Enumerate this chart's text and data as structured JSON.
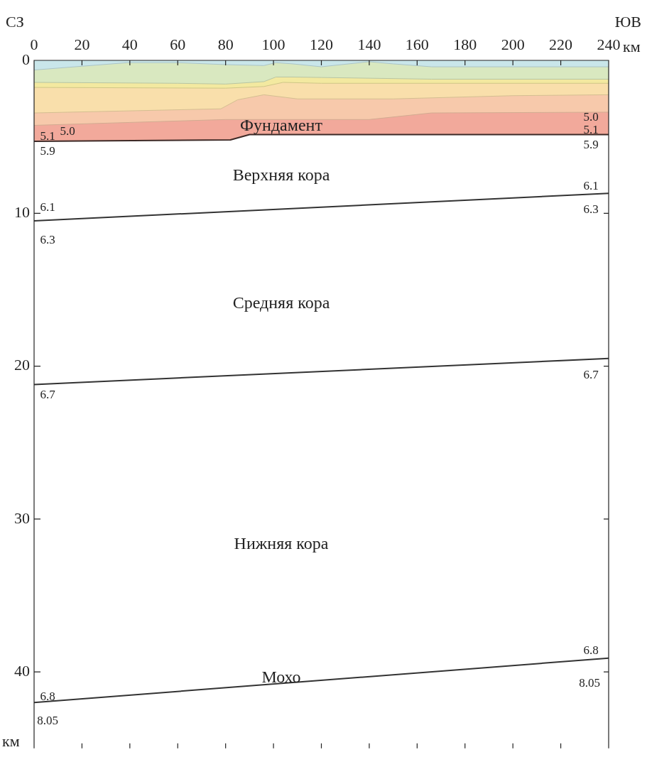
{
  "chart_data": {
    "type": "line",
    "xlabel": "км",
    "ylabel": "км",
    "xlim": [
      0,
      240
    ],
    "xticks": [
      0,
      20,
      40,
      60,
      80,
      100,
      120,
      140,
      160,
      180,
      200,
      220,
      240
    ],
    "ylim": [
      45,
      0
    ],
    "yticks": [
      0,
      10,
      20,
      30,
      40
    ],
    "grid": false,
    "legend": false,
    "marker": "none",
    "line_style": "solid",
    "series": [
      {
        "type": "area",
        "color": "#c9e6ea",
        "x": [
          0,
          39,
          60,
          80,
          96,
          101,
          108,
          120,
          138,
          140,
          150,
          166,
          240
        ],
        "values": [
          0.63,
          0.15,
          0.15,
          0.28,
          0.34,
          0.15,
          0.23,
          0.42,
          0.12,
          0.09,
          0.23,
          0.42,
          0.42
        ]
      },
      {
        "type": "area",
        "color": "#d9e8c0",
        "x": [
          0,
          60,
          80,
          96,
          101,
          108,
          120,
          166,
          240
        ],
        "values": [
          1.44,
          1.5,
          1.55,
          1.39,
          1.09,
          1.09,
          1.12,
          1.23,
          1.23
        ]
      },
      {
        "type": "area",
        "color": "#f3e9a0",
        "x": [
          0,
          80,
          96,
          104,
          120,
          240
        ],
        "values": [
          1.77,
          1.82,
          1.71,
          1.44,
          1.5,
          1.5
        ]
      },
      {
        "type": "area",
        "color": "#f9dfab",
        "x": [
          0,
          78,
          85,
          96,
          110,
          150,
          200,
          240
        ],
        "values": [
          3.44,
          3.17,
          2.58,
          2.25,
          2.52,
          2.52,
          2.31,
          2.25
        ]
      },
      {
        "type": "area",
        "color": "#f7c9ab",
        "x": [
          0,
          40,
          80,
          140,
          166,
          240
        ],
        "values": [
          4.25,
          4.06,
          3.87,
          3.87,
          3.44,
          3.39
        ]
      },
      {
        "type": "area",
        "color": "#f2a99b",
        "x": [
          0,
          82,
          90,
          240
        ],
        "values": [
          5.3,
          5.2,
          4.85,
          4.85
        ]
      },
      {
        "type": "line",
        "color": "#333333",
        "x": [
          0,
          240
        ],
        "values": [
          10.5,
          8.7
        ]
      },
      {
        "type": "line",
        "color": "#333333",
        "x": [
          0,
          240
        ],
        "values": [
          21.2,
          19.5
        ]
      },
      {
        "type": "line",
        "color": "#333333",
        "x": [
          0,
          240
        ],
        "values": [
          42.0,
          39.1
        ]
      }
    ],
    "annotations": [
      "СЗ",
      "ЮВ",
      "Фундамент",
      "5.1",
      "5.0",
      "5.9",
      "5.0",
      "5.1",
      "5.9",
      "Верхняя кора",
      "6.1",
      "6.3",
      "6.1",
      "6.3",
      "Средняя кора",
      "6.7",
      "6.7",
      "Нижняя кора",
      "Мохо",
      "6.8",
      "8.05",
      "6.8",
      "8.05"
    ]
  }
}
